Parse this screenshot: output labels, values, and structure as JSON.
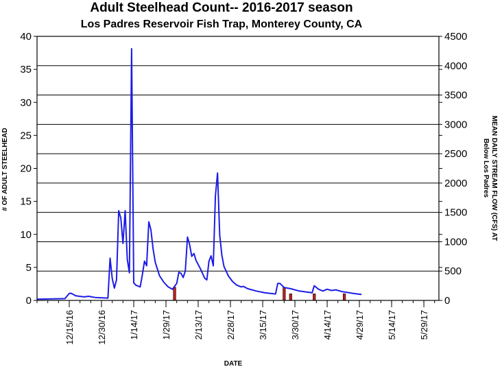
{
  "chart_data": {
    "type": "bar",
    "title": "Adult Steelhead Count-- 2016-2017 season",
    "subtitle": "Los Padres Reservoir Fish Trap, Monterey County, CA",
    "xlabel": "DATE",
    "ylabel": "# OF ADULT STEELHEAD",
    "y2label_line1": "MEAN DAILY STREAM FLOW (CFS) AT",
    "y2label_line2": "Below Los Padres",
    "xlim": [
      "2016-11-30",
      "2017-06-05"
    ],
    "ylim": [
      0,
      40
    ],
    "y2lim": [
      0,
      4500
    ],
    "x_ticks": [
      "12/15/16",
      "12/30/16",
      "1/14/17",
      "1/29/17",
      "2/13/17",
      "2/28/17",
      "3/15/17",
      "3/30/17",
      "4/14/17",
      "4/29/17",
      "5/14/17",
      "5/29/17"
    ],
    "y_ticks": [
      0,
      5,
      10,
      15,
      20,
      25,
      30,
      35,
      40
    ],
    "y2_ticks": [
      0,
      500,
      1000,
      1500,
      2000,
      2500,
      3000,
      3500,
      4000,
      4500
    ],
    "grid": "horizontal",
    "series": [
      {
        "type": "bar",
        "axis": "left",
        "color": "#c0201c",
        "points": [
          {
            "x": "2017-02-02",
            "y": 2
          },
          {
            "x": "2017-03-25",
            "y": 2
          },
          {
            "x": "2017-03-28",
            "y": 1
          },
          {
            "x": "2017-04-08",
            "y": 1
          },
          {
            "x": "2017-04-22",
            "y": 1
          }
        ]
      },
      {
        "type": "line",
        "axis": "right",
        "color": "#1c1ce6",
        "points": [
          {
            "x": "2016-11-30",
            "y": 20
          },
          {
            "x": "2016-12-13",
            "y": 30
          },
          {
            "x": "2016-12-15",
            "y": 120
          },
          {
            "x": "2016-12-16",
            "y": 120
          },
          {
            "x": "2016-12-18",
            "y": 80
          },
          {
            "x": "2016-12-22",
            "y": 60
          },
          {
            "x": "2016-12-24",
            "y": 70
          },
          {
            "x": "2016-12-27",
            "y": 50
          },
          {
            "x": "2017-01-02",
            "y": 40
          },
          {
            "x": "2017-01-03",
            "y": 720
          },
          {
            "x": "2017-01-04",
            "y": 370
          },
          {
            "x": "2017-01-05",
            "y": 210
          },
          {
            "x": "2017-01-06",
            "y": 350
          },
          {
            "x": "2017-01-07",
            "y": 1530
          },
          {
            "x": "2017-01-08",
            "y": 1400
          },
          {
            "x": "2017-01-09",
            "y": 970
          },
          {
            "x": "2017-01-10",
            "y": 1530
          },
          {
            "x": "2017-01-11",
            "y": 700
          },
          {
            "x": "2017-01-12",
            "y": 470
          },
          {
            "x": "2017-01-13",
            "y": 4290
          },
          {
            "x": "2017-01-14",
            "y": 300
          },
          {
            "x": "2017-01-15",
            "y": 260
          },
          {
            "x": "2017-01-17",
            "y": 230
          },
          {
            "x": "2017-01-18",
            "y": 440
          },
          {
            "x": "2017-01-19",
            "y": 670
          },
          {
            "x": "2017-01-20",
            "y": 590
          },
          {
            "x": "2017-01-21",
            "y": 1340
          },
          {
            "x": "2017-01-22",
            "y": 1200
          },
          {
            "x": "2017-01-23",
            "y": 880
          },
          {
            "x": "2017-01-24",
            "y": 650
          },
          {
            "x": "2017-01-26",
            "y": 420
          },
          {
            "x": "2017-01-28",
            "y": 310
          },
          {
            "x": "2017-01-30",
            "y": 230
          },
          {
            "x": "2017-02-01",
            "y": 190
          },
          {
            "x": "2017-02-03",
            "y": 290
          },
          {
            "x": "2017-02-04",
            "y": 480
          },
          {
            "x": "2017-02-05",
            "y": 460
          },
          {
            "x": "2017-02-06",
            "y": 390
          },
          {
            "x": "2017-02-07",
            "y": 500
          },
          {
            "x": "2017-02-08",
            "y": 1080
          },
          {
            "x": "2017-02-09",
            "y": 950
          },
          {
            "x": "2017-02-10",
            "y": 750
          },
          {
            "x": "2017-02-11",
            "y": 800
          },
          {
            "x": "2017-02-12",
            "y": 680
          },
          {
            "x": "2017-02-14",
            "y": 540
          },
          {
            "x": "2017-02-16",
            "y": 380
          },
          {
            "x": "2017-02-17",
            "y": 350
          },
          {
            "x": "2017-02-18",
            "y": 670
          },
          {
            "x": "2017-02-19",
            "y": 760
          },
          {
            "x": "2017-02-20",
            "y": 590
          },
          {
            "x": "2017-02-21",
            "y": 1780
          },
          {
            "x": "2017-02-22",
            "y": 2170
          },
          {
            "x": "2017-02-23",
            "y": 1110
          },
          {
            "x": "2017-02-24",
            "y": 770
          },
          {
            "x": "2017-02-25",
            "y": 580
          },
          {
            "x": "2017-02-27",
            "y": 420
          },
          {
            "x": "2017-03-01",
            "y": 320
          },
          {
            "x": "2017-03-03",
            "y": 260
          },
          {
            "x": "2017-03-05",
            "y": 230
          },
          {
            "x": "2017-03-06",
            "y": 240
          },
          {
            "x": "2017-03-08",
            "y": 200
          },
          {
            "x": "2017-03-12",
            "y": 160
          },
          {
            "x": "2017-03-16",
            "y": 130
          },
          {
            "x": "2017-03-21",
            "y": 110
          },
          {
            "x": "2017-03-22",
            "y": 290
          },
          {
            "x": "2017-03-23",
            "y": 290
          },
          {
            "x": "2017-03-25",
            "y": 220
          },
          {
            "x": "2017-03-28",
            "y": 200
          },
          {
            "x": "2017-04-01",
            "y": 160
          },
          {
            "x": "2017-04-05",
            "y": 140
          },
          {
            "x": "2017-04-07",
            "y": 130
          },
          {
            "x": "2017-04-08",
            "y": 250
          },
          {
            "x": "2017-04-10",
            "y": 190
          },
          {
            "x": "2017-04-12",
            "y": 160
          },
          {
            "x": "2017-04-14",
            "y": 190
          },
          {
            "x": "2017-04-16",
            "y": 170
          },
          {
            "x": "2017-04-18",
            "y": 180
          },
          {
            "x": "2017-04-21",
            "y": 150
          },
          {
            "x": "2017-04-26",
            "y": 120
          },
          {
            "x": "2017-04-30",
            "y": 100
          }
        ]
      }
    ]
  }
}
